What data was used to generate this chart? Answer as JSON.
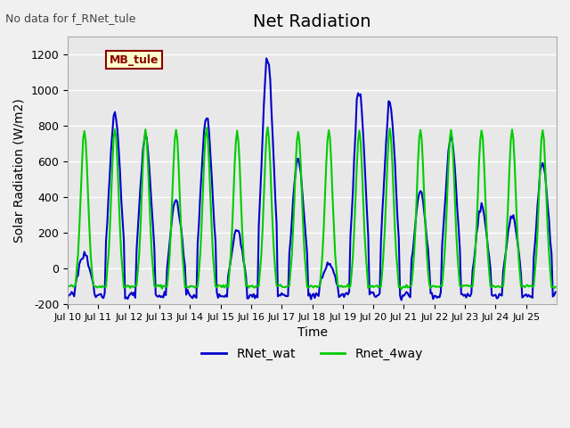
{
  "title": "Net Radiation",
  "subtitle": "No data for f_RNet_tule",
  "xlabel": "Time",
  "ylabel": "Solar Radiation (W/m2)",
  "ylim": [
    -200,
    1300
  ],
  "background_color": "#e8e8e8",
  "legend_label": "MB_tule",
  "series": {
    "RNet_wat": {
      "color": "#0000cc",
      "linewidth": 1.5
    },
    "Rnet_4way": {
      "color": "#00cc00",
      "linewidth": 1.5
    }
  },
  "yticks": [
    -200,
    0,
    200,
    400,
    600,
    800,
    1000,
    1200
  ],
  "xtick_labels": [
    "Jul 10",
    "Jul 11",
    "Jul 12",
    "Jul 13",
    "Jul 14",
    "Jul 15",
    "Jul 16",
    "Jul 17",
    "Jul 18",
    "Jul 19",
    "Jul 20",
    "Jul 21",
    "Jul 22",
    "Jul 23",
    "Jul 24",
    "Jul 25"
  ],
  "hours_per_day": 24,
  "num_days": 16
}
